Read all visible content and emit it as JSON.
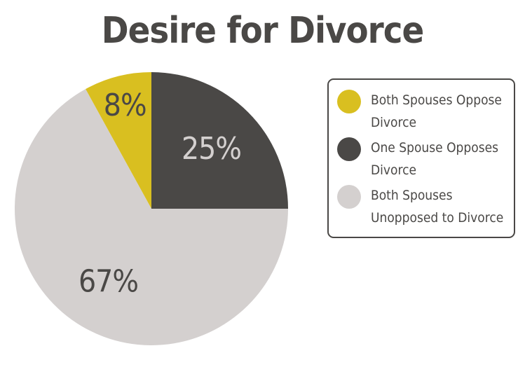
{
  "chart_data": {
    "type": "pie",
    "title": "Desire for Divorce",
    "slices": [
      {
        "name": "Both Spouses Oppose Divorce",
        "value": 8,
        "label": "8%",
        "color": "#d9bf20",
        "label_color": "#4a4846"
      },
      {
        "name": "One Spouse Opposes Divorce",
        "value": 25,
        "label": "25%",
        "color": "#4a4846",
        "label_color": "#d4d0cf"
      },
      {
        "name": "Both Spouses Unopposed to Divorce",
        "value": 67,
        "label": "67%",
        "color": "#d4d0cf",
        "label_color": "#4a4846"
      }
    ],
    "legend_position": "right"
  }
}
